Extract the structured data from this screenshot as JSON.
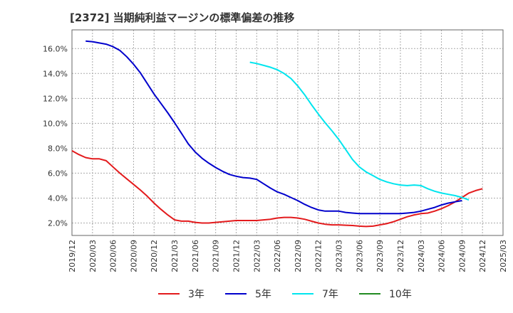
{
  "chart_data": {
    "type": "line",
    "title": "[2372]  当期純利益マージンの標準偏差の推移",
    "xlabel": "",
    "ylabel": "",
    "ylim": [
      1.0,
      17.5
    ],
    "y_ticks": [
      "2.0%",
      "4.0%",
      "6.0%",
      "8.0%",
      "10.0%",
      "12.0%",
      "14.0%",
      "16.0%"
    ],
    "y_tick_values": [
      2,
      4,
      6,
      8,
      10,
      12,
      14,
      16
    ],
    "x_ticks": [
      "2019/12",
      "2020/03",
      "2020/06",
      "2020/09",
      "2020/12",
      "2021/03",
      "2021/06",
      "2021/09",
      "2021/12",
      "2022/03",
      "2022/06",
      "2022/09",
      "2022/12",
      "2023/03",
      "2023/06",
      "2023/09",
      "2023/12",
      "2024/03",
      "2024/06",
      "2024/09",
      "2024/12",
      "2025/03"
    ],
    "grid": true,
    "legend_position": "bottom",
    "series": [
      {
        "name": "3年",
        "color": "#e31a1c",
        "x_start": "2019/12",
        "values": [
          7.8,
          7.5,
          7.25,
          7.15,
          7.15,
          7.0,
          6.5,
          6.0,
          5.55,
          5.1,
          4.65,
          4.15,
          3.6,
          3.1,
          2.65,
          2.25,
          2.15,
          2.15,
          2.05,
          2.0,
          2.0,
          2.05,
          2.1,
          2.15,
          2.2,
          2.2,
          2.2,
          2.2,
          2.25,
          2.3,
          2.4,
          2.45,
          2.45,
          2.4,
          2.3,
          2.15,
          2.0,
          1.9,
          1.85,
          1.85,
          1.82,
          1.8,
          1.75,
          1.72,
          1.75,
          1.85,
          1.95,
          2.1,
          2.3,
          2.5,
          2.65,
          2.75,
          2.8,
          2.95,
          3.15,
          3.4,
          3.7,
          4.05,
          4.4,
          4.6,
          4.75
        ]
      },
      {
        "name": "5年",
        "color": "#0000cc",
        "x_start": "2020/02",
        "values": [
          16.6,
          16.55,
          16.45,
          16.35,
          16.15,
          15.85,
          15.35,
          14.75,
          14.05,
          13.2,
          12.35,
          11.6,
          10.85,
          10.05,
          9.2,
          8.35,
          7.7,
          7.2,
          6.8,
          6.45,
          6.15,
          5.9,
          5.75,
          5.65,
          5.6,
          5.5,
          5.15,
          4.8,
          4.5,
          4.3,
          4.05,
          3.8,
          3.5,
          3.25,
          3.05,
          2.95,
          2.95,
          2.95,
          2.85,
          2.8,
          2.75,
          2.75,
          2.75,
          2.75,
          2.75,
          2.75,
          2.75,
          2.8,
          2.85,
          2.95,
          3.1,
          3.25,
          3.45,
          3.6,
          3.7,
          3.8
        ]
      },
      {
        "name": "7年",
        "color": "#00e5ee",
        "x_start": "2022/02",
        "values": [
          14.9,
          14.8,
          14.65,
          14.5,
          14.3,
          14.0,
          13.6,
          13.0,
          12.3,
          11.5,
          10.75,
          10.05,
          9.4,
          8.7,
          7.9,
          7.1,
          6.5,
          6.1,
          5.8,
          5.5,
          5.3,
          5.15,
          5.05,
          5.0,
          5.05,
          5.0,
          4.75,
          4.55,
          4.4,
          4.3,
          4.2,
          4.05,
          3.85
        ]
      },
      {
        "name": "10年",
        "color": "#228b22",
        "x_start": "2019/12",
        "values": []
      }
    ]
  }
}
